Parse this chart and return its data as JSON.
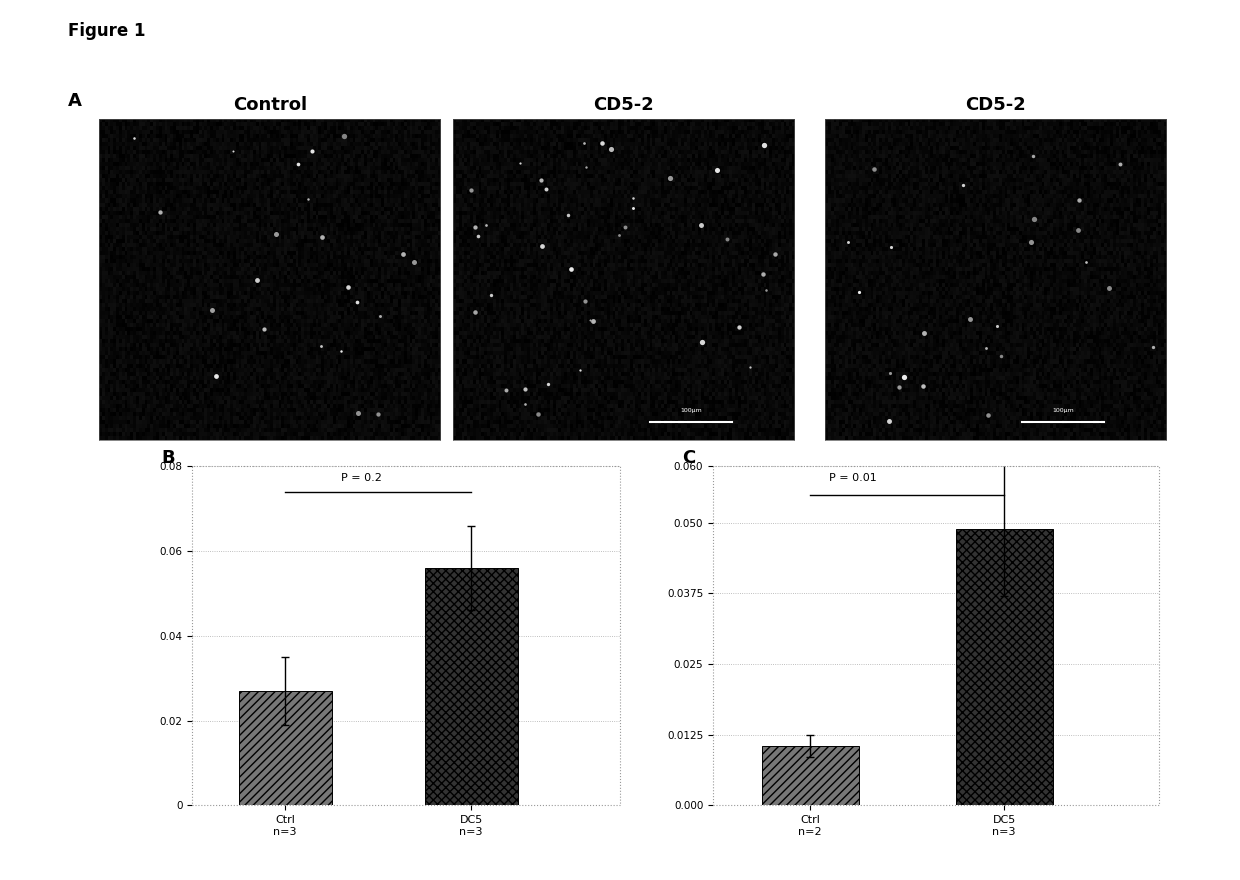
{
  "figure_label": "Figure 1",
  "panel_A_label": "A",
  "panel_B_label": "B",
  "panel_C_label": "C",
  "image_titles": [
    "Control",
    "CD5-2",
    "CD5-2"
  ],
  "chart_B": {
    "categories": [
      "Ctrl",
      "DC5"
    ],
    "n_labels": [
      "n=3",
      "n=3"
    ],
    "values": [
      0.027,
      0.056
    ],
    "errors": [
      0.008,
      0.01
    ],
    "ylim": [
      0,
      0.08
    ],
    "yticks": [
      0,
      0.02,
      0.04,
      0.06,
      0.08
    ],
    "ytick_labels": [
      "0",
      "0.02",
      "0.04",
      "0.06",
      "0.08"
    ],
    "p_value": "P = 0.2",
    "hatch_patterns": [
      "////",
      "xxxx"
    ]
  },
  "chart_C": {
    "categories": [
      "Ctrl",
      "DC5"
    ],
    "n_labels": [
      "n=2",
      "n=3"
    ],
    "values": [
      0.0105,
      0.049
    ],
    "errors": [
      0.002,
      0.012
    ],
    "ylim": [
      0.0,
      0.06
    ],
    "yticks": [
      0.0,
      0.0125,
      0.025,
      0.0375,
      0.05,
      0.06
    ],
    "ytick_labels": [
      "0.000",
      "0.0125",
      "0.025",
      "0.0375",
      "0.050",
      "0.060"
    ],
    "p_value": "P = 0.01",
    "hatch_patterns": [
      "////",
      "xxxx"
    ]
  },
  "bg_color": "#ffffff",
  "text_color": "#000000",
  "grid_color": "#aaaaaa",
  "image_bg_color": "#0a0a0a",
  "bar_color_light": "#777777",
  "bar_color_dark": "#333333"
}
